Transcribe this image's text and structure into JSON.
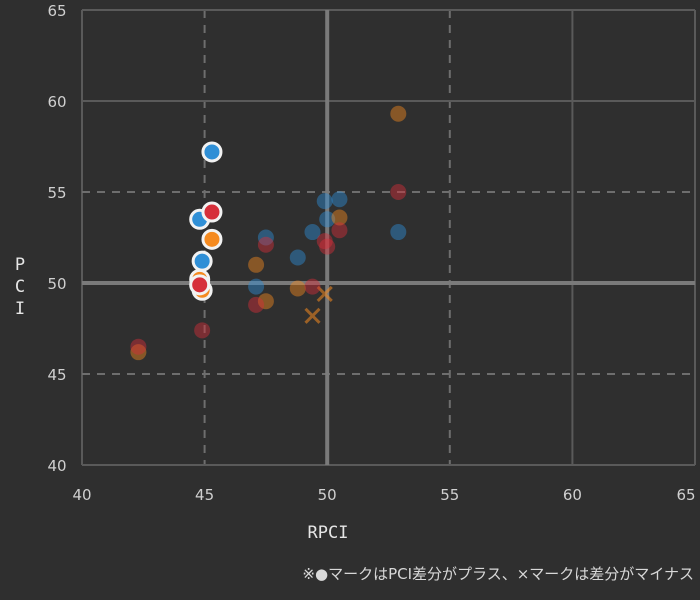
{
  "chart_data": {
    "type": "scatter",
    "title": "",
    "xlabel": "RPCI",
    "ylabel": "PCI",
    "xlim": [
      40,
      65
    ],
    "ylim": [
      40,
      65
    ],
    "x_ticks": [
      40,
      45,
      50,
      55,
      60,
      65
    ],
    "y_ticks": [
      40,
      45,
      50,
      55,
      60,
      65
    ],
    "ref_lines": {
      "x": 50,
      "y": 50
    },
    "dashed_lines": {
      "x": [
        45,
        55
      ],
      "y": [
        45,
        55
      ]
    },
    "grid": true,
    "legend": "none",
    "footnote": "※●マークはPCI差分がプラス、×マークは差分がマイナス",
    "colors": {
      "blue": "#2f8fd6",
      "orange": "#f58a1f",
      "red": "#d62f3a",
      "background": "#2f2f2f"
    },
    "series": [
      {
        "color": "blue",
        "points": [
          {
            "x": 45.3,
            "y": 57.2,
            "highlight": true,
            "marker": "circle"
          },
          {
            "x": 44.8,
            "y": 53.5,
            "highlight": true,
            "marker": "circle"
          },
          {
            "x": 44.9,
            "y": 51.2,
            "highlight": true,
            "marker": "circle"
          },
          {
            "x": 47.1,
            "y": 49.8,
            "highlight": false,
            "marker": "circle"
          },
          {
            "x": 47.5,
            "y": 52.5,
            "highlight": false,
            "marker": "circle"
          },
          {
            "x": 48.8,
            "y": 51.4,
            "highlight": false,
            "marker": "circle"
          },
          {
            "x": 49.4,
            "y": 52.8,
            "highlight": false,
            "marker": "circle"
          },
          {
            "x": 49.9,
            "y": 54.5,
            "highlight": false,
            "marker": "circle"
          },
          {
            "x": 50.5,
            "y": 54.6,
            "highlight": false,
            "marker": "circle"
          },
          {
            "x": 50.0,
            "y": 53.5,
            "highlight": false,
            "marker": "circle"
          },
          {
            "x": 52.9,
            "y": 52.8,
            "highlight": false,
            "marker": "circle"
          }
        ]
      },
      {
        "color": "orange",
        "points": [
          {
            "x": 45.3,
            "y": 52.4,
            "highlight": true,
            "marker": "circle"
          },
          {
            "x": 44.8,
            "y": 50.2,
            "highlight": true,
            "marker": "circle"
          },
          {
            "x": 44.9,
            "y": 49.6,
            "highlight": true,
            "marker": "circle"
          },
          {
            "x": 42.3,
            "y": 46.2,
            "highlight": false,
            "marker": "circle"
          },
          {
            "x": 47.1,
            "y": 51.0,
            "highlight": false,
            "marker": "circle"
          },
          {
            "x": 47.5,
            "y": 49.0,
            "highlight": false,
            "marker": "circle"
          },
          {
            "x": 48.8,
            "y": 49.7,
            "highlight": false,
            "marker": "circle"
          },
          {
            "x": 50.5,
            "y": 53.6,
            "highlight": false,
            "marker": "circle"
          },
          {
            "x": 52.9,
            "y": 59.3,
            "highlight": false,
            "marker": "circle"
          },
          {
            "x": 49.4,
            "y": 48.2,
            "highlight": false,
            "marker": "cross"
          },
          {
            "x": 49.9,
            "y": 49.4,
            "highlight": false,
            "marker": "cross"
          }
        ]
      },
      {
        "color": "red",
        "points": [
          {
            "x": 45.3,
            "y": 53.9,
            "highlight": true,
            "marker": "circle"
          },
          {
            "x": 44.8,
            "y": 49.9,
            "highlight": true,
            "marker": "circle"
          },
          {
            "x": 42.3,
            "y": 46.5,
            "highlight": false,
            "marker": "circle"
          },
          {
            "x": 44.9,
            "y": 47.4,
            "highlight": false,
            "marker": "circle"
          },
          {
            "x": 47.1,
            "y": 48.8,
            "highlight": false,
            "marker": "circle"
          },
          {
            "x": 47.5,
            "y": 52.1,
            "highlight": false,
            "marker": "circle"
          },
          {
            "x": 49.4,
            "y": 49.8,
            "highlight": false,
            "marker": "circle"
          },
          {
            "x": 49.9,
            "y": 52.3,
            "highlight": false,
            "marker": "circle"
          },
          {
            "x": 50.0,
            "y": 52.0,
            "highlight": false,
            "marker": "circle"
          },
          {
            "x": 50.5,
            "y": 52.9,
            "highlight": false,
            "marker": "circle"
          },
          {
            "x": 52.9,
            "y": 55.0,
            "highlight": false,
            "marker": "circle"
          }
        ]
      }
    ]
  }
}
